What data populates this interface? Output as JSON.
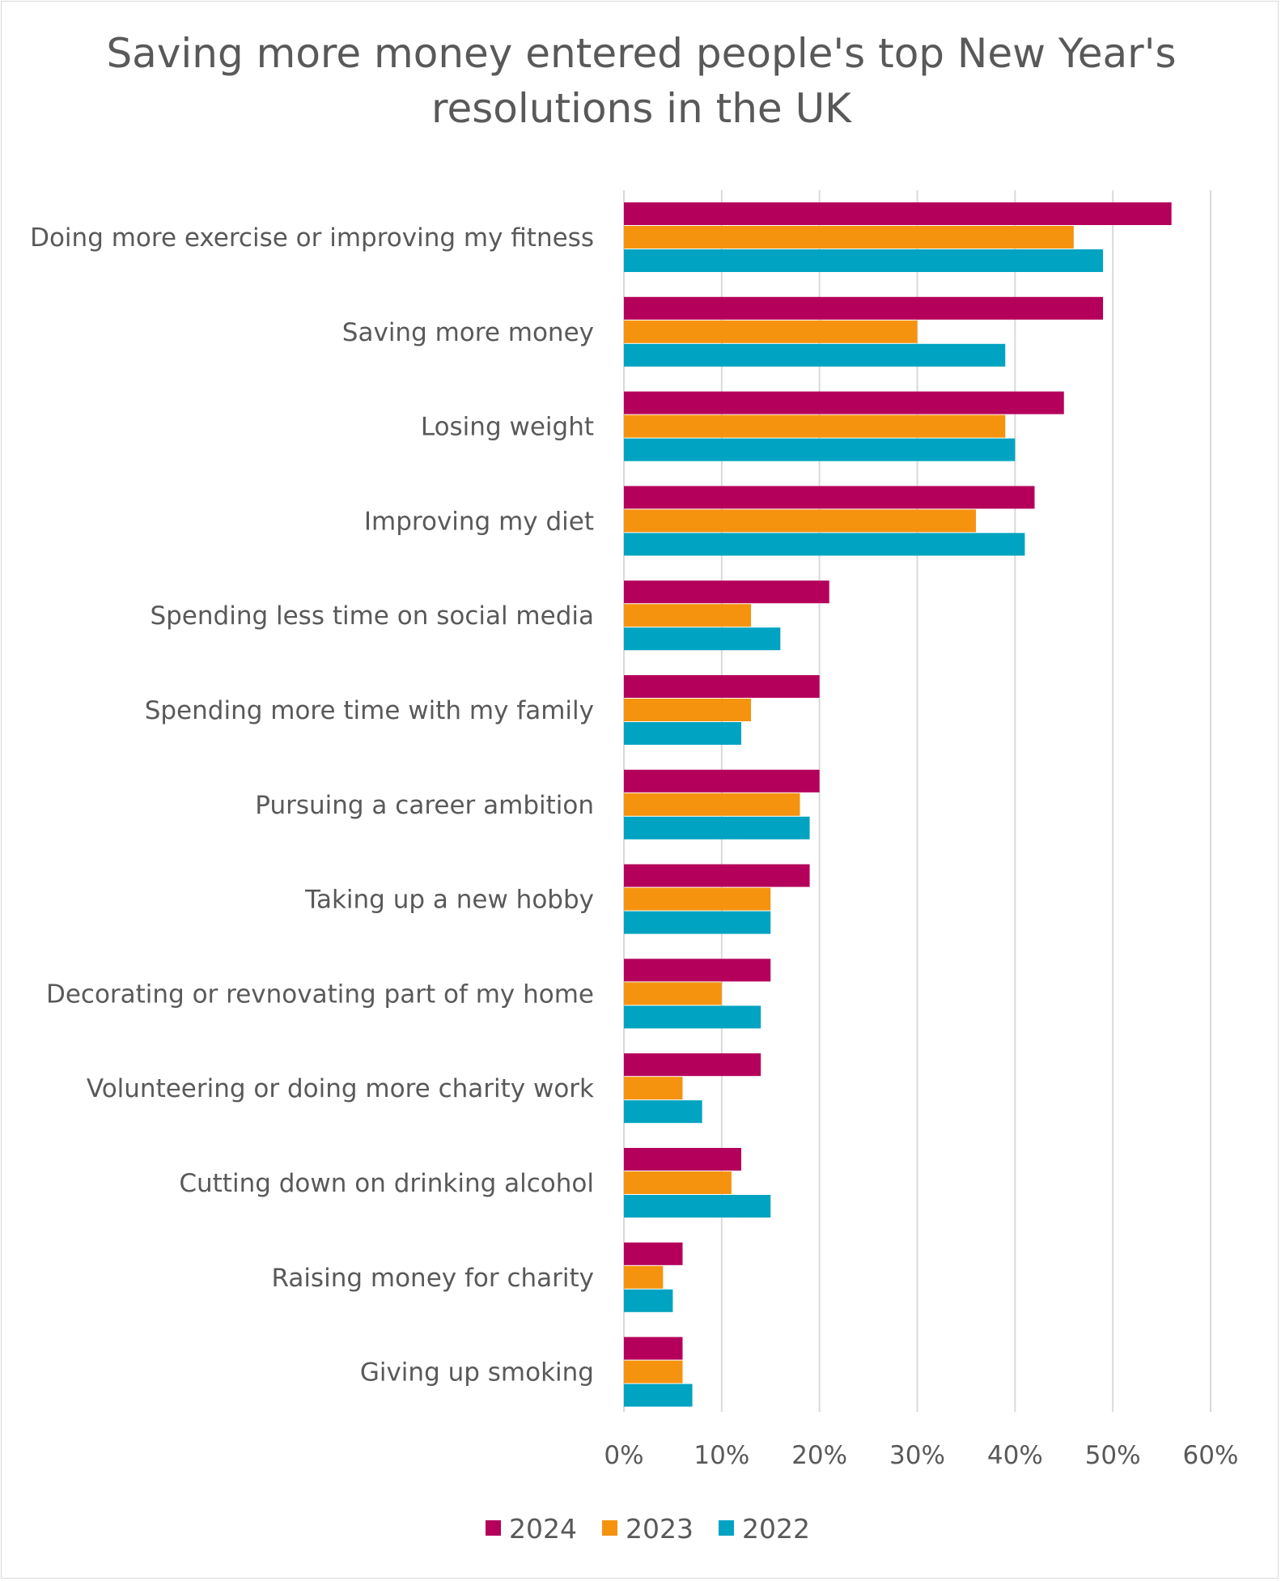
{
  "chart_data": {
    "type": "bar",
    "orientation": "horizontal",
    "title": "Saving more money entered people's top New Year's resolutions in the UK",
    "categories": [
      "Doing more exercise or improving my fitness",
      "Saving more money",
      "Losing weight",
      "Improving my diet",
      "Spending less time on social media",
      "Spending more time with my family",
      "Pursuing a career ambition",
      "Taking up a new hobby",
      "Decorating or revnovating part of my home",
      "Volunteering or doing more charity work",
      "Cutting down on drinking alcohol",
      "Raising money for charity",
      "Giving up smoking"
    ],
    "series": [
      {
        "name": "2024",
        "color": "#b5005b",
        "values": [
          56,
          49,
          45,
          42,
          21,
          20,
          20,
          19,
          15,
          14,
          12,
          6,
          6
        ]
      },
      {
        "name": "2023",
        "color": "#f5930f",
        "values": [
          46,
          30,
          39,
          36,
          13,
          13,
          18,
          15,
          10,
          6,
          11,
          4,
          6
        ]
      },
      {
        "name": "2022",
        "color": "#00a3c1",
        "values": [
          49,
          39,
          40,
          41,
          16,
          12,
          19,
          15,
          14,
          8,
          15,
          5,
          7
        ]
      }
    ],
    "xlim": [
      0,
      60
    ],
    "xticks": [
      "0%",
      "10%",
      "20%",
      "30%",
      "40%",
      "50%",
      "60%"
    ],
    "grid": true,
    "legend_position": "bottom"
  }
}
